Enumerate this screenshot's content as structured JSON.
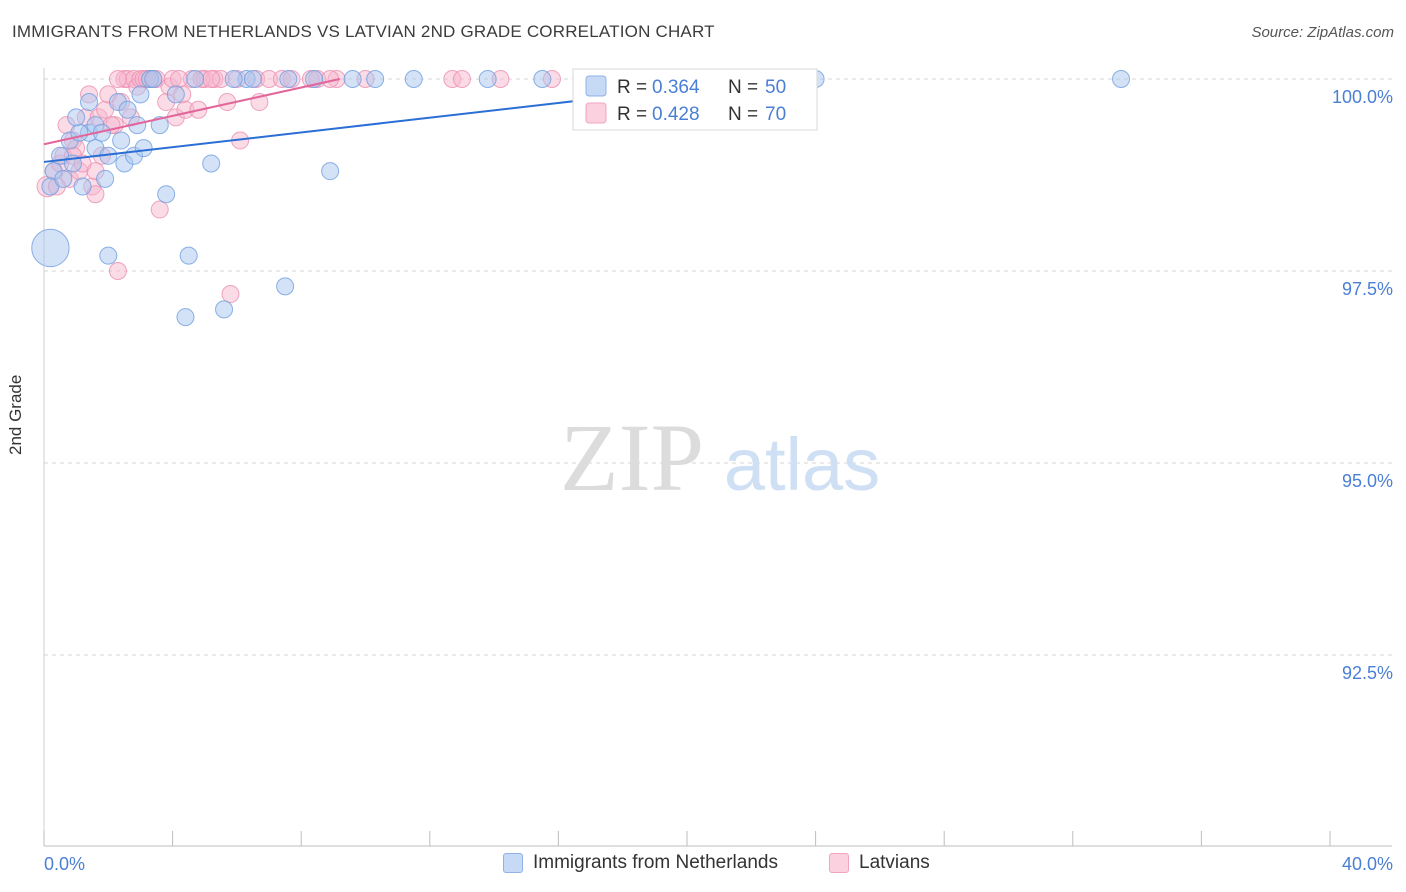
{
  "header": {
    "title": "IMMIGRANTS FROM NETHERLANDS VS LATVIAN 2ND GRADE CORRELATION CHART",
    "source": "Source: ZipAtlas.com"
  },
  "watermark": {
    "zip": "ZIP",
    "atlas": "atlas"
  },
  "colors": {
    "blue_fill": "#a9c6ef",
    "blue_stroke": "#6f9fe0",
    "blue_line": "#2b6fd6",
    "pink_fill": "#f6b7cd",
    "pink_stroke": "#ec8fb0",
    "pink_line": "#e2669a",
    "axis_label": "#4a7fd4"
  },
  "legend": {
    "r_label": "R =",
    "n_label": "N =",
    "items": [
      {
        "r": "0.364",
        "n": "50"
      },
      {
        "r": "0.428",
        "n": "70"
      }
    ]
  },
  "chart_data": {
    "type": "scatter",
    "title": "IMMIGRANTS FROM NETHERLANDS VS LATVIAN 2ND GRADE CORRELATION CHART",
    "xlabel": "",
    "ylabel": "2nd Grade",
    "xlim": [
      0,
      40
    ],
    "ylim": [
      90.0,
      100.2
    ],
    "x_tick_labels": [
      "0.0%",
      "40.0%"
    ],
    "y_ticks": [
      100.0,
      97.5,
      95.0,
      92.5
    ],
    "y_tick_labels": [
      "100.0%",
      "97.5%",
      "95.0%",
      "92.5%"
    ],
    "grid": true,
    "legend_position": "top-center",
    "series": [
      {
        "name": "Immigrants from Netherlands",
        "r": 0.364,
        "n": 50,
        "trend": {
          "x": [
            0,
            22.5
          ],
          "y": [
            98.92,
            100.0
          ]
        },
        "points": [
          [
            0.2,
            97.8,
            22
          ],
          [
            0.3,
            98.8,
            10
          ],
          [
            0.2,
            98.6,
            10
          ],
          [
            0.5,
            99.0,
            10
          ],
          [
            0.8,
            99.2,
            10
          ],
          [
            0.9,
            98.9,
            10
          ],
          [
            1.2,
            98.6,
            10
          ],
          [
            1.4,
            99.3,
            10
          ],
          [
            1.4,
            99.7,
            10
          ],
          [
            1.6,
            99.4,
            10
          ],
          [
            1.6,
            99.1,
            10
          ],
          [
            1.8,
            99.3,
            10
          ],
          [
            1.9,
            98.7,
            10
          ],
          [
            2.0,
            99.0,
            10
          ],
          [
            2.3,
            99.7,
            10
          ],
          [
            2.4,
            99.2,
            10
          ],
          [
            2.5,
            98.9,
            10
          ],
          [
            2.8,
            99.0,
            10
          ],
          [
            2.9,
            99.4,
            10
          ],
          [
            3.0,
            99.8,
            10
          ],
          [
            3.1,
            99.1,
            10
          ],
          [
            3.3,
            100.0,
            10
          ],
          [
            3.6,
            99.4,
            10
          ],
          [
            3.8,
            98.5,
            10
          ],
          [
            4.1,
            99.8,
            10
          ],
          [
            4.4,
            96.9,
            10
          ],
          [
            4.5,
            97.7,
            10
          ],
          [
            4.7,
            100.0,
            10
          ],
          [
            5.2,
            98.9,
            10
          ],
          [
            5.6,
            97.0,
            10
          ],
          [
            6.3,
            100.0,
            10
          ],
          [
            6.5,
            100.0,
            10
          ],
          [
            7.5,
            97.3,
            10
          ],
          [
            7.6,
            100.0,
            10
          ],
          [
            8.4,
            100.0,
            10
          ],
          [
            8.9,
            98.8,
            10
          ],
          [
            9.6,
            100.0,
            10
          ],
          [
            10.3,
            100.0,
            10
          ],
          [
            13.8,
            100.0,
            10
          ],
          [
            15.5,
            100.0,
            10
          ],
          [
            24.0,
            100.0,
            10
          ],
          [
            33.5,
            100.0,
            10
          ],
          [
            1.1,
            99.3,
            10
          ],
          [
            2.0,
            97.7,
            10
          ],
          [
            0.6,
            98.7,
            10
          ],
          [
            1.0,
            99.5,
            10
          ],
          [
            2.6,
            99.6,
            10
          ],
          [
            5.9,
            100.0,
            10
          ],
          [
            11.5,
            100.0,
            10
          ],
          [
            3.4,
            100.0,
            10
          ]
        ]
      },
      {
        "name": "Latvians",
        "r": 0.428,
        "n": 70,
        "trend": {
          "x": [
            0,
            9.2
          ],
          "y": [
            99.15,
            100.0
          ]
        },
        "points": [
          [
            0.1,
            98.6,
            12
          ],
          [
            0.3,
            98.8,
            10
          ],
          [
            0.5,
            98.9,
            10
          ],
          [
            0.6,
            99.0,
            10
          ],
          [
            0.7,
            99.4,
            10
          ],
          [
            0.8,
            98.7,
            10
          ],
          [
            0.9,
            99.2,
            10
          ],
          [
            1.0,
            99.1,
            10
          ],
          [
            1.1,
            98.8,
            10
          ],
          [
            1.3,
            99.5,
            10
          ],
          [
            1.4,
            99.8,
            10
          ],
          [
            1.5,
            98.6,
            10
          ],
          [
            1.6,
            98.8,
            10
          ],
          [
            1.7,
            99.5,
            10
          ],
          [
            1.8,
            99.0,
            10
          ],
          [
            1.9,
            99.6,
            10
          ],
          [
            2.0,
            99.8,
            10
          ],
          [
            2.2,
            99.4,
            10
          ],
          [
            2.3,
            97.5,
            10
          ],
          [
            2.4,
            99.7,
            10
          ],
          [
            2.5,
            100.0,
            10
          ],
          [
            2.6,
            100.0,
            10
          ],
          [
            2.7,
            99.5,
            10
          ],
          [
            2.8,
            100.0,
            10
          ],
          [
            2.9,
            99.9,
            10
          ],
          [
            3.0,
            100.0,
            10
          ],
          [
            3.1,
            100.0,
            10
          ],
          [
            3.2,
            100.0,
            10
          ],
          [
            3.3,
            100.0,
            10
          ],
          [
            3.5,
            100.0,
            10
          ],
          [
            3.6,
            98.3,
            10
          ],
          [
            3.8,
            99.7,
            10
          ],
          [
            3.9,
            99.9,
            10
          ],
          [
            4.0,
            100.0,
            10
          ],
          [
            4.1,
            99.5,
            10
          ],
          [
            4.3,
            99.8,
            10
          ],
          [
            4.4,
            99.6,
            10
          ],
          [
            4.6,
            100.0,
            10
          ],
          [
            4.8,
            99.6,
            10
          ],
          [
            5.0,
            100.0,
            10
          ],
          [
            5.3,
            100.0,
            10
          ],
          [
            5.5,
            100.0,
            10
          ],
          [
            5.7,
            99.7,
            10
          ],
          [
            5.8,
            97.2,
            10
          ],
          [
            6.0,
            100.0,
            10
          ],
          [
            6.1,
            99.2,
            10
          ],
          [
            6.6,
            100.0,
            10
          ],
          [
            6.7,
            99.7,
            10
          ],
          [
            7.0,
            100.0,
            10
          ],
          [
            7.4,
            100.0,
            10
          ],
          [
            7.7,
            100.0,
            10
          ],
          [
            8.3,
            100.0,
            10
          ],
          [
            8.5,
            100.0,
            10
          ],
          [
            9.1,
            100.0,
            10
          ],
          [
            10.0,
            100.0,
            10
          ],
          [
            12.7,
            100.0,
            10
          ],
          [
            13.0,
            100.0,
            10
          ],
          [
            14.2,
            100.0,
            10
          ],
          [
            15.8,
            100.0,
            10
          ],
          [
            0.4,
            98.6,
            10
          ],
          [
            0.9,
            99.0,
            10
          ],
          [
            1.2,
            98.9,
            10
          ],
          [
            1.6,
            98.5,
            10
          ],
          [
            2.1,
            99.4,
            10
          ],
          [
            3.4,
            100.0,
            10
          ],
          [
            4.2,
            100.0,
            10
          ],
          [
            4.9,
            100.0,
            10
          ],
          [
            5.2,
            100.0,
            10
          ],
          [
            8.9,
            100.0,
            10
          ],
          [
            2.3,
            100.0,
            10
          ]
        ]
      }
    ]
  }
}
